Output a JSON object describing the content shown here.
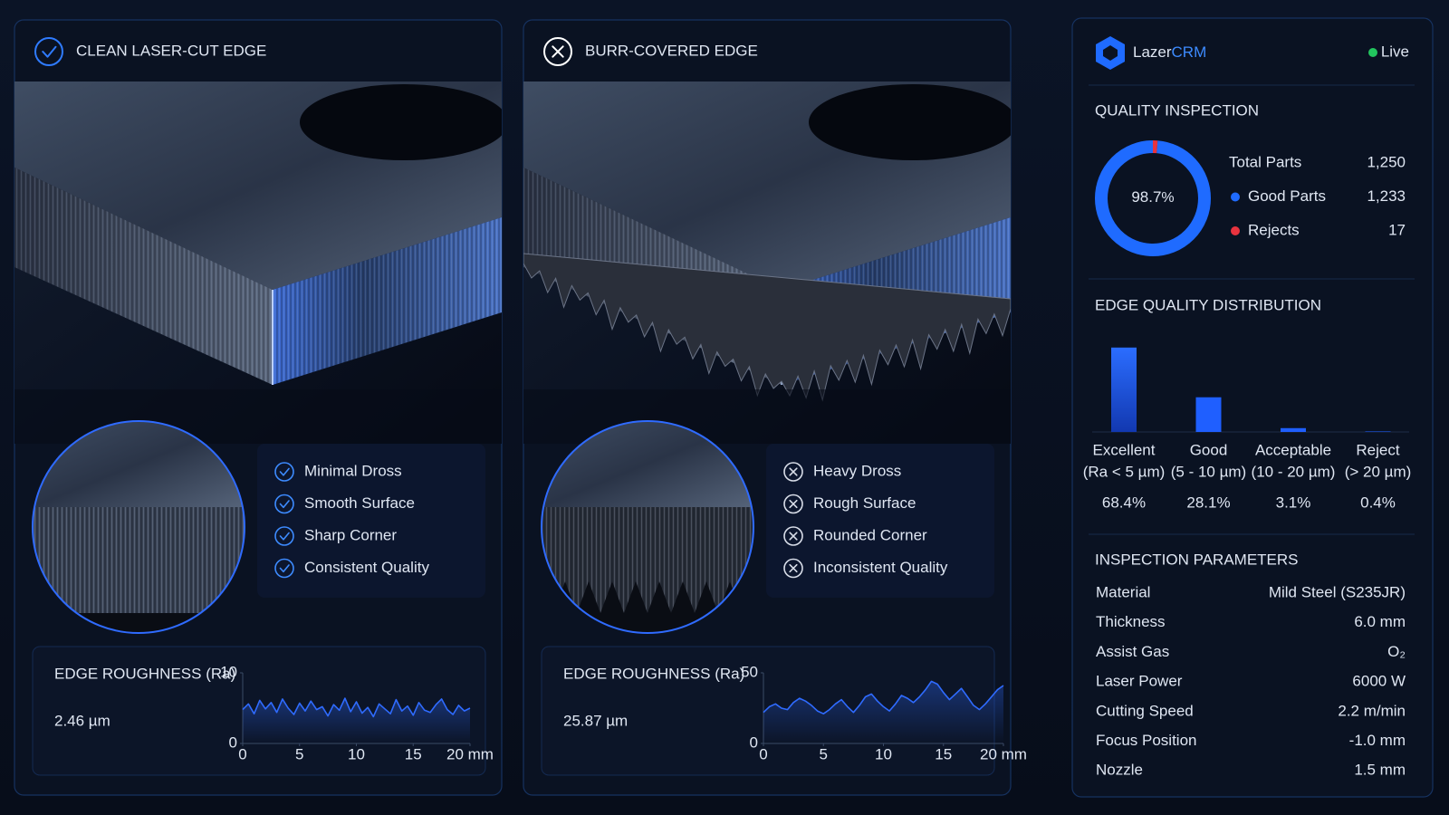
{
  "panels": [
    {
      "title": "CLEAN LASER-CUT EDGE",
      "features": [
        "Minimal Dross",
        "Smooth Surface",
        "Sharp Corner",
        "Consistent Quality"
      ],
      "roughness": {
        "label": "EDGE ROUGHNESS (Ra)",
        "value": "2.46 µm",
        "chart": {
          "type": "line",
          "xlim": [
            0,
            20
          ],
          "xticks": [
            0,
            5,
            10,
            15,
            {
              "value": 20,
              "label": "20 mm"
            }
          ],
          "ylim": [
            0,
            10
          ],
          "yticks": [
            0,
            10
          ],
          "color": "#2f6bff",
          "x": [
            0,
            0.5,
            1,
            1.5,
            2,
            2.5,
            3,
            3.5,
            4,
            4.5,
            5,
            5.5,
            6,
            6.5,
            7,
            7.5,
            8,
            8.5,
            9,
            9.5,
            10,
            10.5,
            11,
            11.5,
            12,
            12.5,
            13,
            13.5,
            14,
            14.5,
            15,
            15.5,
            16,
            16.5,
            17,
            17.5,
            18,
            18.5,
            19,
            19.5,
            20
          ],
          "values": [
            4.8,
            5.6,
            4.2,
            6.1,
            4.9,
            5.8,
            4.4,
            6.3,
            5.0,
            4.1,
            5.7,
            4.6,
            6.0,
            4.8,
            5.2,
            3.9,
            5.5,
            4.7,
            6.4,
            4.5,
            5.9,
            4.3,
            5.1,
            3.8,
            5.6,
            4.9,
            4.2,
            6.2,
            4.6,
            5.3,
            4.0,
            5.8,
            4.7,
            4.4,
            5.5,
            6.3,
            4.8,
            4.1,
            5.4,
            4.6,
            5.0
          ]
        }
      }
    },
    {
      "title": "BURR-COVERED EDGE",
      "features": [
        "Heavy Dross",
        "Rough Surface",
        "Rounded Corner",
        "Inconsistent Quality"
      ],
      "roughness": {
        "label": "EDGE ROUGHNESS (Ra)",
        "value": "25.87 µm",
        "chart": {
          "type": "line",
          "xlim": [
            0,
            20
          ],
          "xticks": [
            0,
            5,
            10,
            15,
            {
              "value": 20,
              "label": "20 mm"
            }
          ],
          "ylim": [
            0,
            50
          ],
          "yticks": [
            0,
            50
          ],
          "color": "#2f6bff",
          "x": [
            0,
            0.5,
            1,
            1.5,
            2,
            2.5,
            3,
            3.5,
            4,
            4.5,
            5,
            5.5,
            6,
            6.5,
            7,
            7.5,
            8,
            8.5,
            9,
            9.5,
            10,
            10.5,
            11,
            11.5,
            12,
            12.5,
            13,
            13.5,
            14,
            14.5,
            15,
            15.5,
            16,
            16.5,
            17,
            17.5,
            18,
            18.5,
            19,
            19.5,
            20
          ],
          "values": [
            22,
            26,
            28,
            25,
            24,
            29,
            32,
            30,
            27,
            23,
            21,
            24,
            28,
            31,
            26,
            22,
            27,
            33,
            35,
            30,
            26,
            23,
            28,
            34,
            32,
            29,
            33,
            38,
            44,
            42,
            36,
            31,
            35,
            39,
            33,
            27,
            24,
            28,
            33,
            38,
            41
          ]
        }
      }
    }
  ],
  "crm": {
    "brand": {
      "first": "Lazer",
      "second": "CRM"
    },
    "status": "Live",
    "quality": {
      "title": "QUALITY INSPECTION",
      "rate": "98.7",
      "rate_unit": "%",
      "stats": [
        {
          "label": "Total Parts",
          "value": 1250,
          "value_label": "1,250"
        },
        {
          "label": "Good Parts",
          "value": 1233,
          "value_label": "1,233",
          "color": "#1f6bff"
        },
        {
          "label": "Rejects",
          "value": 17,
          "value_label": "17",
          "color": "#e8333f"
        }
      ]
    },
    "distribution": {
      "title": "EDGE QUALITY DISTRIBUTION",
      "chart": {
        "type": "bar",
        "categories": [
          "Excellent",
          "Good",
          "Acceptable",
          "Reject"
        ],
        "sublabels": [
          "(Ra < 5 µm)",
          "(5 - 10 µm)",
          "(10 - 20 µm)",
          "(> 20 µm)"
        ],
        "values": [
          68.4,
          28.1,
          3.1,
          0.4
        ],
        "value_labels": [
          "68.4%",
          "28.1%",
          "3.1%",
          "0.4%"
        ],
        "ylim": [
          0,
          80
        ],
        "color": "#1f5fff"
      }
    },
    "parameters": {
      "title": "INSPECTION PARAMETERS",
      "rows": [
        {
          "label": "Material",
          "value": "Mild Steel (S235JR)"
        },
        {
          "label": "Thickness",
          "value": "6.0 mm"
        },
        {
          "label": "Assist Gas",
          "value": "O₂"
        },
        {
          "label": "Laser Power",
          "value": "6000 W"
        },
        {
          "label": "Cutting Speed",
          "value": "2.2 m/min"
        },
        {
          "label": "Focus Position",
          "value": "-1.0 mm"
        },
        {
          "label": "Nozzle",
          "value": "1.5 mm"
        }
      ]
    }
  }
}
